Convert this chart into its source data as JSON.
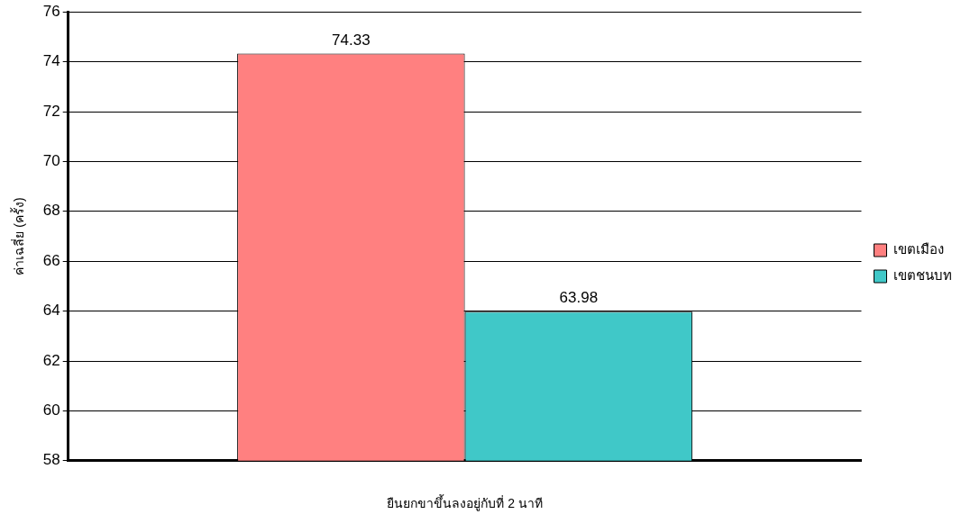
{
  "chart_data": {
    "type": "bar",
    "xlabel": "ยืนยกขาขึ้นลงอยู่กับที่ 2 นาที",
    "ylabel": "ค่าเฉลี่ย (ครั้ง)",
    "categories": [
      null
    ],
    "series": [
      {
        "name": "เขตเมือง",
        "color": "#ff8080",
        "values": [
          74.33
        ]
      },
      {
        "name": "เขตชนบท",
        "color": "#40c8c8",
        "values": [
          63.98
        ]
      }
    ],
    "ylim": [
      58,
      76
    ],
    "yticks": [
      58,
      60,
      62,
      64,
      66,
      68,
      70,
      72,
      74,
      76
    ],
    "grid": "y",
    "legend": "right",
    "data_labels": true
  }
}
